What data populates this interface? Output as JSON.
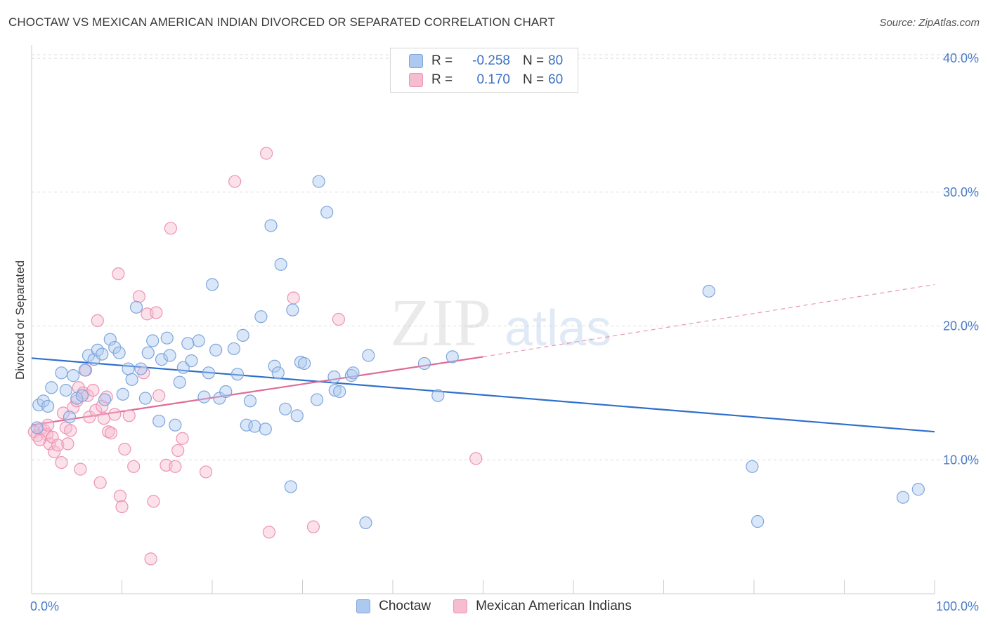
{
  "header": {
    "title": "CHOCTAW VS MEXICAN AMERICAN INDIAN DIVORCED OR SEPARATED CORRELATION CHART",
    "source": "Source: ZipAtlas.com"
  },
  "legend": {
    "r_label": "R =",
    "n_label": "N =",
    "rows": [
      {
        "r": "-0.258",
        "n": "80"
      },
      {
        "r": "0.170",
        "n": "60"
      }
    ]
  },
  "watermark": {
    "zip": "ZIP",
    "atlas": "atlas"
  },
  "colors": {
    "choctaw_fill": "#aec9ef",
    "choctaw_stroke": "#7fa6dd",
    "choctaw_line": "#2f6fcc",
    "mexican_fill": "#f6bcd0",
    "mexican_stroke": "#ee93b3",
    "mexican_line": "#e06a98",
    "tick_text": "#4a7cc7",
    "grid": "#dddddd"
  },
  "chart_data": {
    "type": "scatter",
    "title": "CHOCTAW VS MEXICAN AMERICAN INDIAN DIVORCED OR SEPARATED CORRELATION CHART",
    "xlabel": "",
    "ylabel": "Divorced or Separated",
    "xlim": [
      0,
      100
    ],
    "ylim": [
      0,
      41
    ],
    "x_tick_labels": [
      "0.0%",
      "100.0%"
    ],
    "y_ticks": [
      10,
      20,
      30,
      40
    ],
    "y_tick_labels": [
      "10.0%",
      "20.0%",
      "30.0%",
      "40.0%"
    ],
    "grid": true,
    "legend_position": "bottom",
    "series": [
      {
        "name": "Choctaw",
        "r": -0.258,
        "n": 80,
        "trend": {
          "x0": 0,
          "y0": 17.6,
          "x1": 100,
          "y1": 12.1
        },
        "points": [
          [
            0.6,
            12.4
          ],
          [
            0.8,
            14.1
          ],
          [
            1.3,
            14.4
          ],
          [
            1.8,
            14.0
          ],
          [
            2.2,
            15.4
          ],
          [
            3.3,
            16.5
          ],
          [
            3.8,
            15.2
          ],
          [
            4.2,
            13.2
          ],
          [
            4.6,
            16.3
          ],
          [
            5.0,
            14.6
          ],
          [
            5.6,
            14.8
          ],
          [
            5.9,
            16.7
          ],
          [
            6.3,
            17.8
          ],
          [
            6.9,
            17.5
          ],
          [
            7.3,
            18.2
          ],
          [
            7.8,
            17.9
          ],
          [
            8.1,
            14.5
          ],
          [
            8.7,
            19.0
          ],
          [
            9.2,
            18.4
          ],
          [
            9.7,
            18.0
          ],
          [
            10.1,
            14.9
          ],
          [
            10.7,
            16.8
          ],
          [
            11.1,
            16.0
          ],
          [
            11.6,
            21.4
          ],
          [
            12.1,
            16.8
          ],
          [
            12.6,
            14.6
          ],
          [
            12.9,
            18.0
          ],
          [
            13.4,
            18.9
          ],
          [
            14.1,
            12.9
          ],
          [
            14.4,
            17.5
          ],
          [
            15.0,
            19.1
          ],
          [
            15.3,
            17.8
          ],
          [
            15.9,
            12.6
          ],
          [
            16.4,
            15.8
          ],
          [
            16.8,
            16.9
          ],
          [
            17.3,
            18.7
          ],
          [
            17.7,
            17.4
          ],
          [
            18.5,
            18.9
          ],
          [
            19.1,
            14.7
          ],
          [
            19.6,
            16.5
          ],
          [
            20.0,
            23.1
          ],
          [
            20.4,
            18.2
          ],
          [
            20.8,
            14.6
          ],
          [
            21.5,
            15.1
          ],
          [
            22.4,
            18.3
          ],
          [
            22.8,
            16.4
          ],
          [
            23.4,
            19.3
          ],
          [
            23.8,
            12.6
          ],
          [
            24.2,
            14.4
          ],
          [
            24.7,
            12.5
          ],
          [
            25.4,
            20.7
          ],
          [
            25.9,
            12.3
          ],
          [
            26.5,
            27.5
          ],
          [
            26.9,
            17.0
          ],
          [
            27.3,
            16.5
          ],
          [
            27.6,
            24.6
          ],
          [
            28.1,
            13.8
          ],
          [
            28.7,
            8.0
          ],
          [
            28.9,
            21.2
          ],
          [
            29.4,
            13.3
          ],
          [
            29.8,
            17.3
          ],
          [
            30.2,
            17.2
          ],
          [
            31.6,
            14.5
          ],
          [
            31.8,
            30.8
          ],
          [
            32.7,
            28.5
          ],
          [
            33.5,
            16.2
          ],
          [
            33.6,
            15.2
          ],
          [
            34.1,
            15.1
          ],
          [
            35.4,
            16.3
          ],
          [
            35.6,
            16.5
          ],
          [
            37.0,
            5.3
          ],
          [
            37.3,
            17.8
          ],
          [
            43.5,
            17.2
          ],
          [
            45.0,
            14.8
          ],
          [
            46.6,
            17.7
          ],
          [
            75.0,
            22.6
          ],
          [
            79.8,
            9.5
          ],
          [
            80.4,
            5.4
          ],
          [
            96.5,
            7.2
          ],
          [
            98.2,
            7.8
          ]
        ]
      },
      {
        "name": "Mexican American Indians",
        "r": 0.17,
        "n": 60,
        "trend": {
          "x0": 0,
          "y0": 12.6,
          "x1": 50,
          "y1": 17.7,
          "dash_to_x": 100,
          "dash_to_y": 23.1
        },
        "points": [
          [
            0.3,
            12.1
          ],
          [
            0.6,
            11.8
          ],
          [
            1.0,
            12.3
          ],
          [
            1.4,
            12.2
          ],
          [
            1.7,
            11.9
          ],
          [
            2.0,
            11.2
          ],
          [
            2.3,
            11.7
          ],
          [
            2.5,
            10.6
          ],
          [
            2.9,
            11.1
          ],
          [
            3.3,
            9.8
          ],
          [
            3.5,
            13.5
          ],
          [
            3.8,
            12.4
          ],
          [
            4.0,
            11.2
          ],
          [
            4.3,
            12.2
          ],
          [
            4.6,
            13.9
          ],
          [
            5.0,
            14.4
          ],
          [
            5.2,
            15.4
          ],
          [
            5.4,
            9.3
          ],
          [
            5.7,
            15.0
          ],
          [
            6.0,
            16.7
          ],
          [
            6.2,
            14.8
          ],
          [
            6.4,
            13.2
          ],
          [
            6.8,
            15.2
          ],
          [
            7.1,
            13.7
          ],
          [
            7.3,
            20.4
          ],
          [
            7.6,
            8.3
          ],
          [
            7.8,
            14.0
          ],
          [
            8.0,
            13.1
          ],
          [
            8.3,
            14.7
          ],
          [
            8.5,
            12.1
          ],
          [
            8.8,
            12.0
          ],
          [
            9.2,
            13.4
          ],
          [
            9.6,
            23.9
          ],
          [
            9.8,
            7.3
          ],
          [
            10.0,
            6.5
          ],
          [
            10.3,
            10.8
          ],
          [
            10.8,
            13.3
          ],
          [
            11.3,
            9.5
          ],
          [
            11.9,
            22.2
          ],
          [
            12.4,
            16.5
          ],
          [
            12.8,
            20.9
          ],
          [
            13.2,
            2.6
          ],
          [
            13.5,
            6.9
          ],
          [
            13.8,
            21.0
          ],
          [
            14.1,
            14.8
          ],
          [
            14.9,
            9.6
          ],
          [
            15.4,
            27.3
          ],
          [
            15.9,
            9.5
          ],
          [
            16.2,
            10.7
          ],
          [
            16.7,
            11.6
          ],
          [
            19.3,
            9.1
          ],
          [
            22.5,
            30.8
          ],
          [
            26.0,
            32.9
          ],
          [
            26.3,
            4.6
          ],
          [
            29.0,
            22.1
          ],
          [
            31.2,
            5.0
          ],
          [
            34.0,
            20.5
          ],
          [
            49.2,
            10.1
          ],
          [
            1.8,
            12.6
          ],
          [
            0.9,
            11.5
          ]
        ]
      }
    ]
  }
}
